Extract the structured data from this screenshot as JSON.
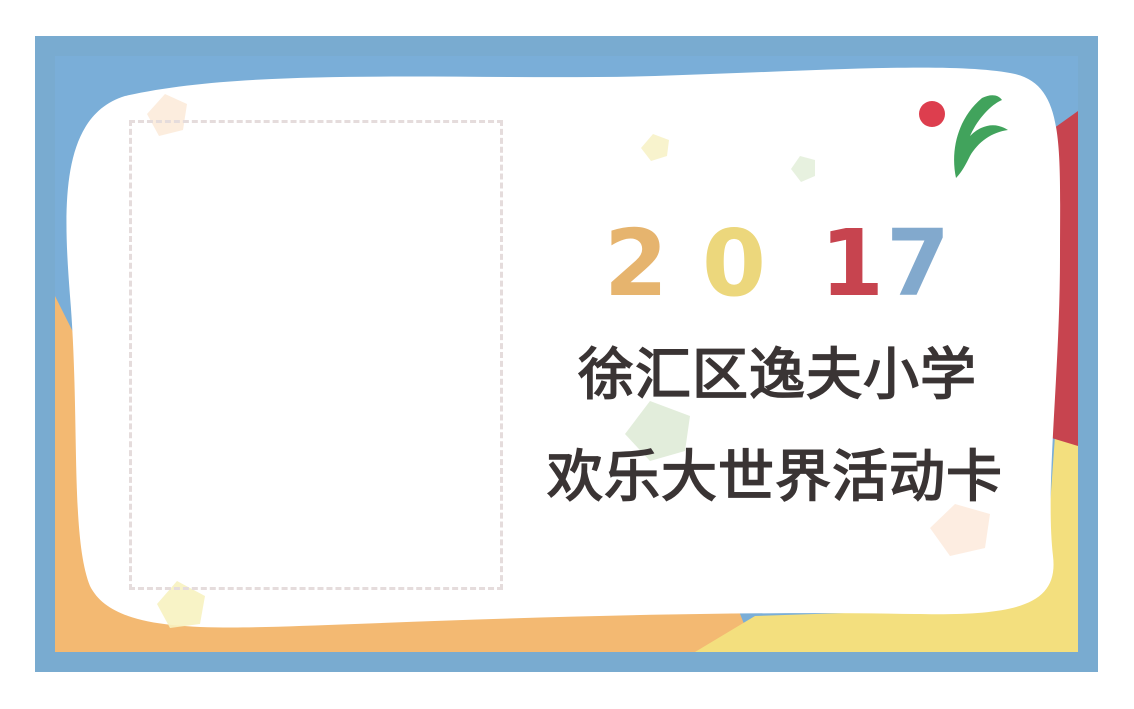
{
  "card": {
    "year_digits": [
      {
        "char": "2",
        "color": "#e6b46e"
      },
      {
        "char": "0",
        "color": "#ecd77c"
      },
      {
        "char": "1",
        "color": "#c7444f"
      },
      {
        "char": "7",
        "color": "#82a9cd"
      }
    ],
    "title_line1": "徐汇区逸夫小学",
    "title_line2": "欢乐大世界活动卡"
  },
  "colors": {
    "frame_blue": "#79abd0",
    "orange": "#f3b972",
    "yellow": "#f3df7e",
    "red": "#c7444f",
    "logo_red": "#dd3e4e",
    "logo_green": "#41a35c",
    "text": "#3a3434"
  },
  "icons": {
    "logo": "school-logo-icon",
    "photo_area": "photo-placeholder"
  }
}
